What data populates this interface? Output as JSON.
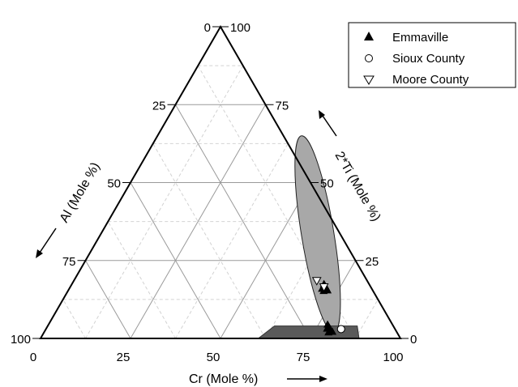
{
  "chart_data": {
    "type": "scatter",
    "subtype": "ternary",
    "axes": {
      "cr": {
        "label": "Cr (Mole %)",
        "ticks": [
          "0",
          "25",
          "50",
          "75",
          "100"
        ],
        "range": [
          0,
          100
        ]
      },
      "ti": {
        "label": "2*Ti (Mole %)",
        "ticks": [
          "0",
          "25",
          "50",
          "75",
          "100"
        ],
        "range": [
          0,
          100
        ]
      },
      "al": {
        "label": "Al (Mole %)",
        "ticks": [
          "0",
          "25",
          "50",
          "75",
          "100"
        ],
        "range": [
          0,
          100
        ]
      }
    },
    "grid": {
      "major_step": 25,
      "minor_step": 12.5
    },
    "legend": {
      "placement": "top-right",
      "entries": [
        {
          "name": "Emmaville",
          "marker": "filled-up-triangle"
        },
        {
          "name": "Sioux County",
          "marker": "open-circle"
        },
        {
          "name": "Moore County",
          "marker": "open-down-triangle"
        }
      ]
    },
    "series": [
      {
        "name": "Emmaville",
        "points": [
          {
            "cr": 70.0,
            "ti": 17.5
          },
          {
            "cr": 70.5,
            "ti": 17.0
          },
          {
            "cr": 71.0,
            "ti": 16.5
          },
          {
            "cr": 70.2,
            "ti": 16.0
          },
          {
            "cr": 71.5,
            "ti": 16.0
          },
          {
            "cr": 72.0,
            "ti": 15.5
          },
          {
            "cr": 71.0,
            "ti": 15.3
          },
          {
            "cr": 77.5,
            "ti": 4.5
          },
          {
            "cr": 78.0,
            "ti": 4.0
          },
          {
            "cr": 78.5,
            "ti": 3.5
          },
          {
            "cr": 79.0,
            "ti": 3.0
          },
          {
            "cr": 78.0,
            "ti": 3.2
          },
          {
            "cr": 79.5,
            "ti": 2.5
          },
          {
            "cr": 79.0,
            "ti": 2.0
          },
          {
            "cr": 80.0,
            "ti": 2.2
          }
        ]
      },
      {
        "name": "Sioux County",
        "points": [
          {
            "cr": 82.0,
            "ti": 3.0
          }
        ]
      },
      {
        "name": "Moore County",
        "points": [
          {
            "cr": 67.5,
            "ti": 18.5
          },
          {
            "cr": 70.5,
            "ti": 16.5
          }
        ]
      }
    ],
    "regions": [
      {
        "kind": "ellipse",
        "color": "#a8a8a8",
        "outline": "#222222",
        "axis_end_a": {
          "cr": 40.0,
          "ti": 65.0
        },
        "axis_end_b": {
          "cr": 80.5,
          "ti": 2.0
        },
        "minor_width": 9.0
      },
      {
        "kind": "polygon",
        "color": "#5a5a5a",
        "outline": "#333333",
        "vertices": [
          {
            "cr": 63.0,
            "ti": 4.0
          },
          {
            "cr": 86.0,
            "ti": 4.0
          },
          {
            "cr": 88.5,
            "ti": 0.0
          },
          {
            "cr": 60.5,
            "ti": 0.0
          }
        ]
      }
    ]
  }
}
